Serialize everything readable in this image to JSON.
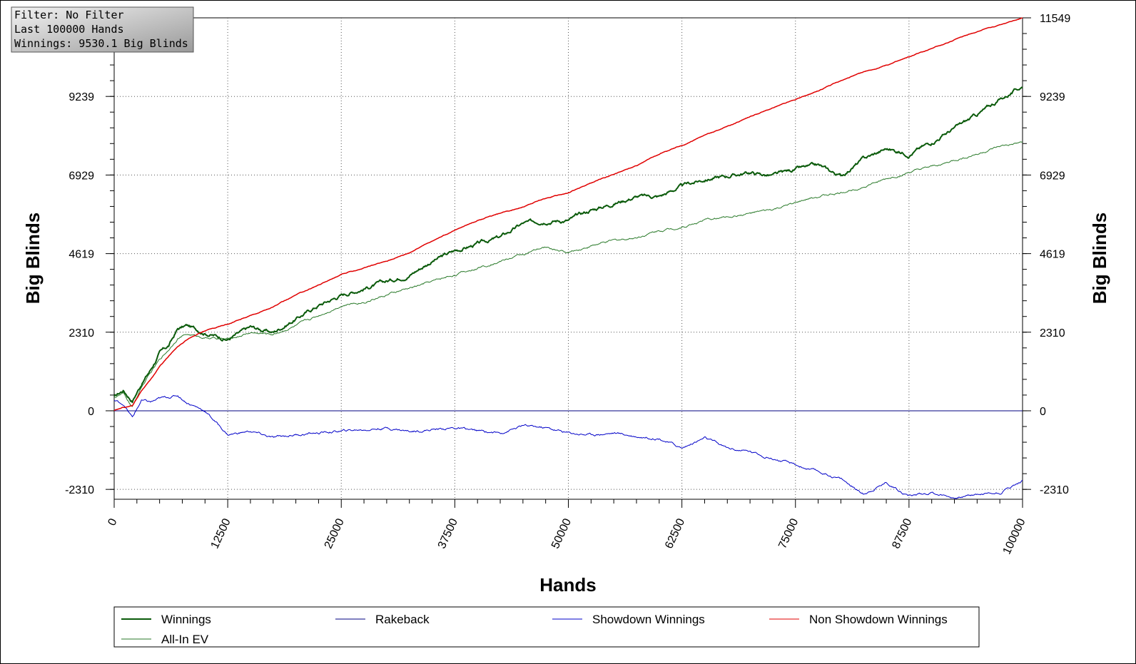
{
  "info_box": {
    "lines": [
      "Filter: No Filter",
      "Last  100000 Hands",
      "Winnings: 9530.1 Big Blinds"
    ]
  },
  "colors": {
    "winnings": "#0a5a0a",
    "allin_ev": "#2a7a2a",
    "rakeback": "#000080",
    "showdown": "#0000c8",
    "non_showdown": "#e00000",
    "grid": "#555555"
  },
  "chart_data": {
    "type": "line",
    "title": "",
    "xlabel": "Hands",
    "ylabel": "Big Blinds",
    "xlim": [
      0,
      100000
    ],
    "ylim": [
      -2600,
      11549
    ],
    "x_ticks": [
      0,
      12500,
      25000,
      37500,
      50000,
      62500,
      75000,
      87500,
      100000
    ],
    "x_tick_labels": [
      "0",
      "12500",
      "25000",
      "37500",
      "50000",
      "62500",
      "75000",
      "87500",
      "100000"
    ],
    "y_ticks": [
      -2310,
      0,
      2310,
      4619,
      6929,
      9239,
      11549
    ],
    "y_tick_labels_left": [
      "-2310",
      "0",
      "2310",
      "4619",
      "6929",
      "9239"
    ],
    "y_tick_labels_right": [
      "-2310",
      "0",
      "2310",
      "4619",
      "6929",
      "9239",
      "11549"
    ],
    "grid": true,
    "legend_position": "bottom",
    "series": [
      {
        "name": "Winnings",
        "color_key": "winnings",
        "width": 2,
        "noise": 70,
        "points": [
          [
            0,
            400
          ],
          [
            1000,
            600
          ],
          [
            2000,
            300
          ],
          [
            3000,
            800
          ],
          [
            4000,
            1200
          ],
          [
            5000,
            1700
          ],
          [
            6000,
            1900
          ],
          [
            7000,
            2400
          ],
          [
            8000,
            2500
          ],
          [
            10000,
            2300
          ],
          [
            12500,
            2100
          ],
          [
            15000,
            2450
          ],
          [
            17500,
            2300
          ],
          [
            20000,
            2700
          ],
          [
            22500,
            3100
          ],
          [
            25000,
            3400
          ],
          [
            27500,
            3600
          ],
          [
            30000,
            3800
          ],
          [
            32500,
            4000
          ],
          [
            35000,
            4400
          ],
          [
            37500,
            4700
          ],
          [
            40000,
            4900
          ],
          [
            42500,
            5100
          ],
          [
            45000,
            5500
          ],
          [
            47500,
            5600
          ],
          [
            50000,
            5600
          ],
          [
            52500,
            5900
          ],
          [
            55000,
            6100
          ],
          [
            57500,
            6300
          ],
          [
            60000,
            6300
          ],
          [
            62500,
            6600
          ],
          [
            65000,
            6800
          ],
          [
            67500,
            6900
          ],
          [
            70000,
            7000
          ],
          [
            72500,
            6900
          ],
          [
            75000,
            7100
          ],
          [
            77500,
            7200
          ],
          [
            80000,
            6900
          ],
          [
            82500,
            7400
          ],
          [
            85000,
            7700
          ],
          [
            87500,
            7550
          ],
          [
            90000,
            7900
          ],
          [
            92500,
            8300
          ],
          [
            95000,
            8700
          ],
          [
            97500,
            9150
          ],
          [
            100000,
            9530
          ]
        ]
      },
      {
        "name": "All-In EV",
        "color_key": "allin_ev",
        "width": 1,
        "noise": 40,
        "points": [
          [
            0,
            400
          ],
          [
            1000,
            500
          ],
          [
            2000,
            100
          ],
          [
            3000,
            700
          ],
          [
            4000,
            1100
          ],
          [
            5000,
            1500
          ],
          [
            6000,
            1800
          ],
          [
            7000,
            2150
          ],
          [
            8000,
            2250
          ],
          [
            10000,
            2150
          ],
          [
            12500,
            2100
          ],
          [
            15000,
            2300
          ],
          [
            17500,
            2250
          ],
          [
            20000,
            2500
          ],
          [
            22500,
            2800
          ],
          [
            25000,
            3100
          ],
          [
            27500,
            3200
          ],
          [
            30000,
            3400
          ],
          [
            32500,
            3600
          ],
          [
            35000,
            3800
          ],
          [
            37500,
            4000
          ],
          [
            40000,
            4200
          ],
          [
            42500,
            4400
          ],
          [
            45000,
            4600
          ],
          [
            47500,
            4800
          ],
          [
            50000,
            4650
          ],
          [
            52500,
            4850
          ],
          [
            55000,
            5000
          ],
          [
            57500,
            5100
          ],
          [
            60000,
            5300
          ],
          [
            62500,
            5400
          ],
          [
            65000,
            5600
          ],
          [
            67500,
            5700
          ],
          [
            70000,
            5800
          ],
          [
            72500,
            5900
          ],
          [
            75000,
            6100
          ],
          [
            77500,
            6300
          ],
          [
            80000,
            6400
          ],
          [
            82500,
            6600
          ],
          [
            85000,
            6800
          ],
          [
            87500,
            7000
          ],
          [
            90000,
            7150
          ],
          [
            92500,
            7350
          ],
          [
            95000,
            7550
          ],
          [
            97500,
            7750
          ],
          [
            100000,
            7870
          ]
        ]
      },
      {
        "name": "Rakeback",
        "color_key": "rakeback",
        "width": 1,
        "noise": 0,
        "points": [
          [
            0,
            0
          ],
          [
            100000,
            0
          ]
        ]
      },
      {
        "name": "Showdown Winnings",
        "color_key": "showdown",
        "width": 1,
        "noise": 45,
        "points": [
          [
            0,
            300
          ],
          [
            1000,
            200
          ],
          [
            2000,
            -200
          ],
          [
            3000,
            300
          ],
          [
            4000,
            250
          ],
          [
            5000,
            350
          ],
          [
            6000,
            400
          ],
          [
            7000,
            450
          ],
          [
            8000,
            250
          ],
          [
            10000,
            0
          ],
          [
            12500,
            -700
          ],
          [
            15000,
            -600
          ],
          [
            17500,
            -800
          ],
          [
            20000,
            -700
          ],
          [
            22500,
            -650
          ],
          [
            25000,
            -600
          ],
          [
            27500,
            -550
          ],
          [
            30000,
            -500
          ],
          [
            32500,
            -600
          ],
          [
            35000,
            -550
          ],
          [
            37500,
            -500
          ],
          [
            40000,
            -600
          ],
          [
            42500,
            -650
          ],
          [
            45000,
            -450
          ],
          [
            47500,
            -500
          ],
          [
            50000,
            -650
          ],
          [
            52500,
            -700
          ],
          [
            55000,
            -650
          ],
          [
            57500,
            -750
          ],
          [
            60000,
            -800
          ],
          [
            62500,
            -1100
          ],
          [
            65000,
            -800
          ],
          [
            67500,
            -1100
          ],
          [
            70000,
            -1200
          ],
          [
            72500,
            -1400
          ],
          [
            75000,
            -1600
          ],
          [
            77500,
            -1800
          ],
          [
            80000,
            -2000
          ],
          [
            82500,
            -2450
          ],
          [
            85000,
            -2100
          ],
          [
            87500,
            -2500
          ],
          [
            90000,
            -2400
          ],
          [
            92500,
            -2550
          ],
          [
            95000,
            -2450
          ],
          [
            97500,
            -2400
          ],
          [
            100000,
            -2050
          ]
        ]
      },
      {
        "name": "Non Showdown Winnings",
        "color_key": "non_showdown",
        "width": 1.5,
        "noise": 15,
        "points": [
          [
            0,
            0
          ],
          [
            1000,
            100
          ],
          [
            2000,
            150
          ],
          [
            3000,
            600
          ],
          [
            4000,
            900
          ],
          [
            5000,
            1300
          ],
          [
            6000,
            1600
          ],
          [
            7000,
            1900
          ],
          [
            8000,
            2100
          ],
          [
            10000,
            2350
          ],
          [
            12500,
            2550
          ],
          [
            15000,
            2800
          ],
          [
            17500,
            3050
          ],
          [
            20000,
            3400
          ],
          [
            22500,
            3700
          ],
          [
            25000,
            4000
          ],
          [
            27500,
            4200
          ],
          [
            30000,
            4400
          ],
          [
            32500,
            4650
          ],
          [
            35000,
            5000
          ],
          [
            37500,
            5300
          ],
          [
            40000,
            5600
          ],
          [
            42500,
            5800
          ],
          [
            45000,
            6000
          ],
          [
            47500,
            6250
          ],
          [
            50000,
            6400
          ],
          [
            52500,
            6700
          ],
          [
            55000,
            6950
          ],
          [
            57500,
            7200
          ],
          [
            60000,
            7550
          ],
          [
            62500,
            7800
          ],
          [
            65000,
            8100
          ],
          [
            67500,
            8350
          ],
          [
            70000,
            8650
          ],
          [
            72500,
            8900
          ],
          [
            75000,
            9150
          ],
          [
            77500,
            9400
          ],
          [
            80000,
            9700
          ],
          [
            82500,
            9950
          ],
          [
            85000,
            10150
          ],
          [
            87500,
            10400
          ],
          [
            90000,
            10650
          ],
          [
            92500,
            10900
          ],
          [
            95000,
            11150
          ],
          [
            97500,
            11350
          ],
          [
            100000,
            11549
          ]
        ]
      }
    ],
    "legend": {
      "rows": [
        [
          "Winnings",
          "Rakeback",
          "Showdown Winnings",
          "Non Showdown Winnings"
        ],
        [
          "All-In EV"
        ]
      ]
    }
  }
}
